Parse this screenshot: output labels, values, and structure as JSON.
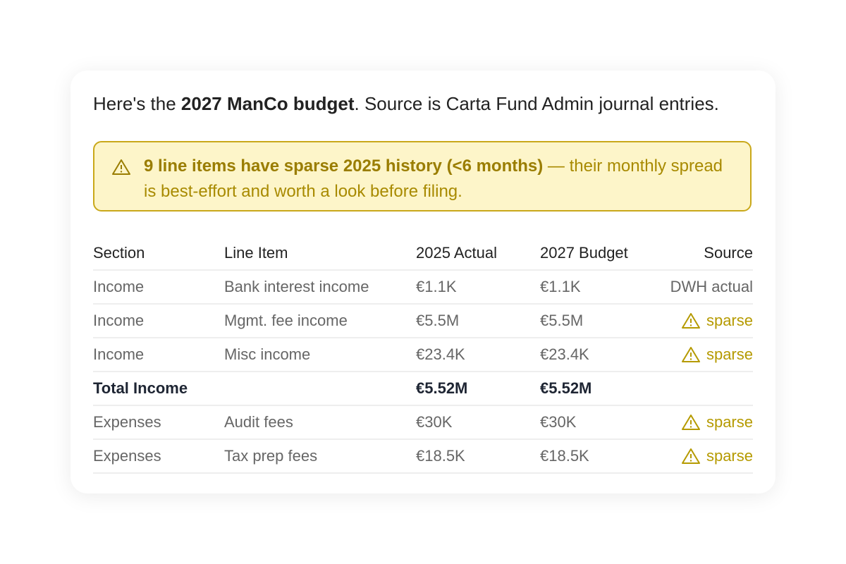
{
  "intro": {
    "before": "Here's the ",
    "bold": "2027 ManCo budget",
    "after": ". Source is Carta Fund Admin journal entries."
  },
  "warning": {
    "bold": "9 line items have sparse 2025 history (<6 months)",
    "text": " — their monthly spread is best-effort and worth a look before filing."
  },
  "table": {
    "headers": [
      "Section",
      "Line Item",
      "2025 Actual",
      "2027 Budget",
      "Source"
    ],
    "rows": [
      {
        "section": "Income",
        "line_item": "Bank interest income",
        "actual": "€1.1K",
        "budget": "€1.1K",
        "source": "DWH actual"
      },
      {
        "section": "Income",
        "line_item": "Mgmt. fee income",
        "actual": "€5.5M",
        "budget": "€5.5M",
        "source": "sparse",
        "flagged": true
      },
      {
        "section": "Income",
        "line_item": "Misc income",
        "actual": "€23.4K",
        "budget": "€23.4K",
        "source": "sparse",
        "flagged": true
      },
      {
        "section": "Total Income",
        "actual": "€5.52M",
        "budget": "€5.52M",
        "total": true
      },
      {
        "section": "Expenses",
        "line_item": "Audit fees",
        "actual": "€30K",
        "budget": "€30K",
        "source": "sparse",
        "flagged": true
      },
      {
        "section": "Expenses",
        "line_item": "Tax prep fees",
        "actual": "€18.5K",
        "budget": "€18.5K",
        "source": "sparse",
        "flagged": true
      }
    ]
  }
}
